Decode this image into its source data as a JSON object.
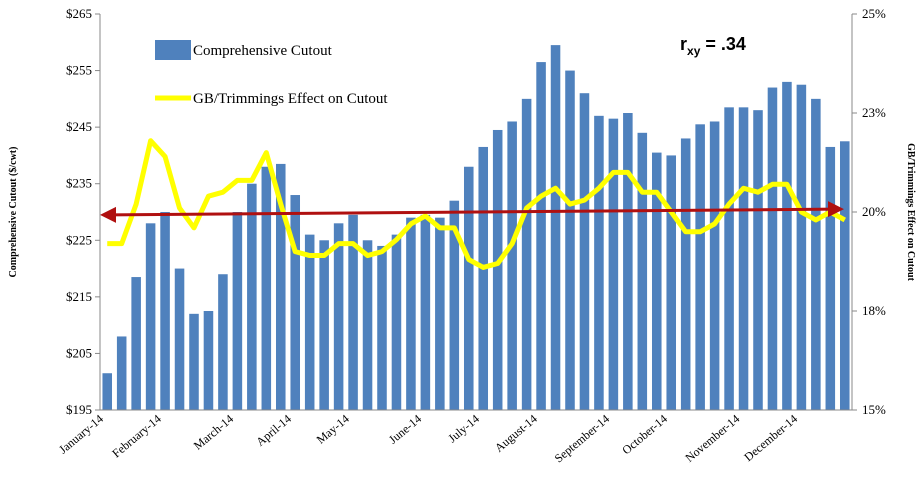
{
  "chart_data": {
    "type": "bar_line",
    "y_axis_label": "Comprehensive Cutout ($/cwt)",
    "y2_axis_label": "GB/Trimmings Effect on Cutout",
    "annotation": [
      "r",
      "xy",
      " = .34"
    ],
    "categories": [
      "January-14",
      null,
      null,
      null,
      "February-14",
      null,
      null,
      null,
      null,
      "March-14",
      null,
      null,
      null,
      "April-14",
      null,
      null,
      null,
      "May-14",
      null,
      null,
      null,
      null,
      "June-14",
      null,
      null,
      null,
      "July-14",
      null,
      null,
      null,
      "August-14",
      null,
      null,
      null,
      null,
      "September-14",
      null,
      null,
      null,
      "October-14",
      null,
      null,
      null,
      null,
      "November-14",
      null,
      null,
      null,
      "December-14",
      null,
      null,
      null
    ],
    "series": [
      {
        "name": "Comprehensive Cutout",
        "color": "#4f81bd",
        "axis": "y",
        "values": [
          201.5,
          208,
          218.5,
          228,
          230,
          220,
          212,
          212.5,
          219,
          230,
          235,
          238,
          238.5,
          233,
          226,
          225,
          228,
          229.5,
          225,
          224,
          226,
          229,
          229.5,
          229,
          232,
          238,
          241.5,
          244.5,
          246,
          250,
          256.5,
          259.5,
          255,
          251,
          247,
          246.5,
          247.5,
          244,
          240.5,
          240,
          243,
          245.5,
          246,
          248.5,
          248.5,
          248,
          252,
          253,
          252.5,
          250,
          241.5,
          242.5
        ]
      },
      {
        "name": "GB/Trimmings Effect on Cutout",
        "color": "#ffff00",
        "axis": "y2",
        "values": [
          19.2,
          19.2,
          20.2,
          21.8,
          21.4,
          20.1,
          19.6,
          20.4,
          20.5,
          20.8,
          20.8,
          21.5,
          20.2,
          19.0,
          18.9,
          18.9,
          19.2,
          19.2,
          18.9,
          19.0,
          19.3,
          19.7,
          19.9,
          19.6,
          19.6,
          18.8,
          18.6,
          18.7,
          19.2,
          20.1,
          20.4,
          20.6,
          20.2,
          20.3,
          20.6,
          21.0,
          21.0,
          20.5,
          20.5,
          20.0,
          19.5,
          19.5,
          19.7,
          20.2,
          20.6,
          20.5,
          20.7,
          20.7,
          20.0,
          19.8,
          20.0,
          19.8
        ]
      }
    ],
    "trend_line": {
      "start": 229.5,
      "end": 230.5,
      "color": "#b01010"
    },
    "ylim": [
      195,
      265
    ],
    "yticks": [
      {
        "value": 195,
        "label": "$195"
      },
      {
        "value": 205,
        "label": "$205"
      },
      {
        "value": 215,
        "label": "$215"
      },
      {
        "value": 225,
        "label": "$225"
      },
      {
        "value": 235,
        "label": "$235"
      },
      {
        "value": 245,
        "label": "$245"
      },
      {
        "value": 255,
        "label": "$255"
      },
      {
        "value": 265,
        "label": "$265"
      }
    ],
    "y2lim": [
      15,
      25
    ],
    "y2ticks": [
      {
        "value": 15,
        "label": "15%"
      },
      {
        "value": 17.5,
        "label": "18%"
      },
      {
        "value": 20,
        "label": "20%"
      },
      {
        "value": 22.5,
        "label": "23%"
      },
      {
        "value": 25,
        "label": "25%"
      }
    ],
    "grid": false
  }
}
